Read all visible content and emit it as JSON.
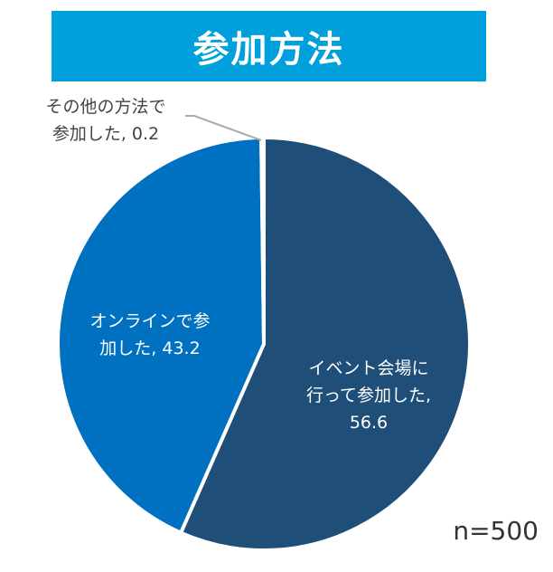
{
  "chart_data": {
    "type": "pie",
    "title": "参加方法",
    "slices": [
      {
        "label": "イベント会場に行って参加した",
        "value": 56.6,
        "color": "#1f4e79"
      },
      {
        "label": "オンラインで参加した",
        "value": 43.2,
        "color": "#0070c0"
      },
      {
        "label": "その他の方法で参加した",
        "value": 0.2,
        "color": "#0070c0"
      }
    ],
    "data_labels": [
      "イベント会場に行って参加した, 56.6",
      "オンラインで参加した, 43.2",
      "その他の方法で参加した, 0.2"
    ],
    "label_lines": [
      [
        "イベント会場に",
        "行って参加した,",
        "56.6"
      ],
      [
        "オンラインで参",
        "加した, 43.2"
      ],
      [
        "その他の方法で",
        "参加した, 0.2"
      ]
    ],
    "start_angle": "12 o'clock",
    "direction": "clockwise",
    "annotation": "n=500"
  }
}
